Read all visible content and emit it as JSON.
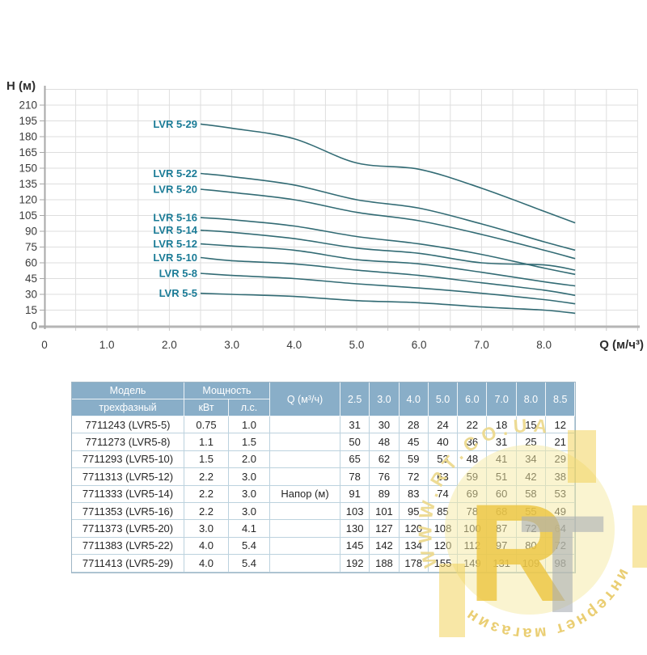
{
  "chart_data": {
    "type": "line",
    "title": "",
    "xlabel": "Q (м/ч³)",
    "ylabel": "H (м)",
    "x": [
      2.5,
      3.0,
      4.0,
      5.0,
      6.0,
      7.0,
      8.0,
      8.5
    ],
    "xlim": [
      0,
      9.5
    ],
    "ylim": [
      0,
      225
    ],
    "x_tick_labels": [
      "0",
      "1.0",
      "2.0",
      "3.0",
      "4.0",
      "5.0",
      "6.0",
      "7.0",
      "8.0"
    ],
    "y_tick_labels": [
      "0",
      "15",
      "30",
      "45",
      "60",
      "75",
      "90",
      "105",
      "120",
      "135",
      "150",
      "165",
      "180",
      "195",
      "210"
    ],
    "grid": true,
    "legend_position": "inline-left-of-curves",
    "line_color": "#326b74",
    "label_color": "#1a7b96",
    "series": [
      {
        "name": "LVR 5-29",
        "values": [
          192,
          188,
          178,
          155,
          149,
          131,
          109,
          98
        ]
      },
      {
        "name": "LVR 5-22",
        "values": [
          145,
          142,
          134,
          120,
          112,
          97,
          80,
          72
        ]
      },
      {
        "name": "LVR 5-20",
        "values": [
          130,
          127,
          120,
          108,
          100,
          87,
          72,
          64
        ]
      },
      {
        "name": "LVR 5-16",
        "values": [
          103,
          101,
          95,
          85,
          78,
          68,
          55,
          49
        ]
      },
      {
        "name": "LVR 5-14",
        "values": [
          91,
          89,
          83,
          74,
          69,
          60,
          58,
          53
        ]
      },
      {
        "name": "LVR 5-12",
        "values": [
          78,
          76,
          72,
          63,
          59,
          51,
          42,
          38
        ]
      },
      {
        "name": "LVR 5-10",
        "values": [
          65,
          62,
          59,
          53,
          48,
          41,
          34,
          29
        ]
      },
      {
        "name": "LVR 5-8",
        "values": [
          50,
          48,
          45,
          40,
          36,
          31,
          25,
          21
        ]
      },
      {
        "name": "LVR 5-5",
        "values": [
          31,
          30,
          28,
          24,
          22,
          18,
          15,
          12
        ]
      }
    ]
  },
  "table": {
    "header": {
      "model": "Модель",
      "model_sub": "трехфазный",
      "power": "Мощность",
      "power_kw": "кВт",
      "power_hp": "л.с.",
      "q": "Q (м³/ч)",
      "q_values": [
        "2.5",
        "3.0",
        "4.0",
        "5.0",
        "6.0",
        "7.0",
        "8.0",
        "8.5"
      ]
    },
    "napor_label": "Напор (м)",
    "napor_row_index": 4,
    "rows": [
      {
        "model": "7711243 (LVR5-5)",
        "kw": "0.75",
        "hp": "1.0",
        "values": [
          31,
          30,
          28,
          24,
          22,
          18,
          15,
          12
        ]
      },
      {
        "model": "7711273 (LVR5-8)",
        "kw": "1.1",
        "hp": "1.5",
        "values": [
          50,
          48,
          45,
          40,
          36,
          31,
          25,
          21
        ]
      },
      {
        "model": "7711293 (LVR5-10)",
        "kw": "1.5",
        "hp": "2.0",
        "values": [
          65,
          62,
          59,
          53,
          48,
          41,
          34,
          29
        ]
      },
      {
        "model": "7711313 (LVR5-12)",
        "kw": "2.2",
        "hp": "3.0",
        "values": [
          78,
          76,
          72,
          63,
          59,
          51,
          42,
          38
        ]
      },
      {
        "model": "7711333 (LVR5-14)",
        "kw": "2.2",
        "hp": "3.0",
        "values": [
          91,
          89,
          83,
          74,
          69,
          60,
          58,
          53
        ]
      },
      {
        "model": "7711353 (LVR5-16)",
        "kw": "2.2",
        "hp": "3.0",
        "values": [
          103,
          101,
          95,
          85,
          78,
          68,
          55,
          49
        ]
      },
      {
        "model": "7711373 (LVR5-20)",
        "kw": "3.0",
        "hp": "4.1",
        "values": [
          130,
          127,
          120,
          108,
          100,
          87,
          72,
          64
        ]
      },
      {
        "model": "7711383 (LVR5-22)",
        "kw": "4.0",
        "hp": "5.4",
        "values": [
          145,
          142,
          134,
          120,
          112,
          97,
          80,
          72
        ]
      },
      {
        "model": "7711413 (LVR5-29)",
        "kw": "4.0",
        "hp": "5.4",
        "values": [
          192,
          188,
          178,
          155,
          149,
          131,
          109,
          98
        ]
      }
    ]
  },
  "watermark": {
    "arc_top_text": "WWW.RT.CO.UA",
    "arc_bottom_text": "интернет магазин",
    "monogram_r": "R",
    "monogram_t": "T",
    "colors": {
      "gold": "#eec63e",
      "pale_disc": "#f5e9a2",
      "cream_text": "#ecd98e",
      "gray_t": "#a9aeb4",
      "bar_gold": "#f2cf4e"
    }
  }
}
